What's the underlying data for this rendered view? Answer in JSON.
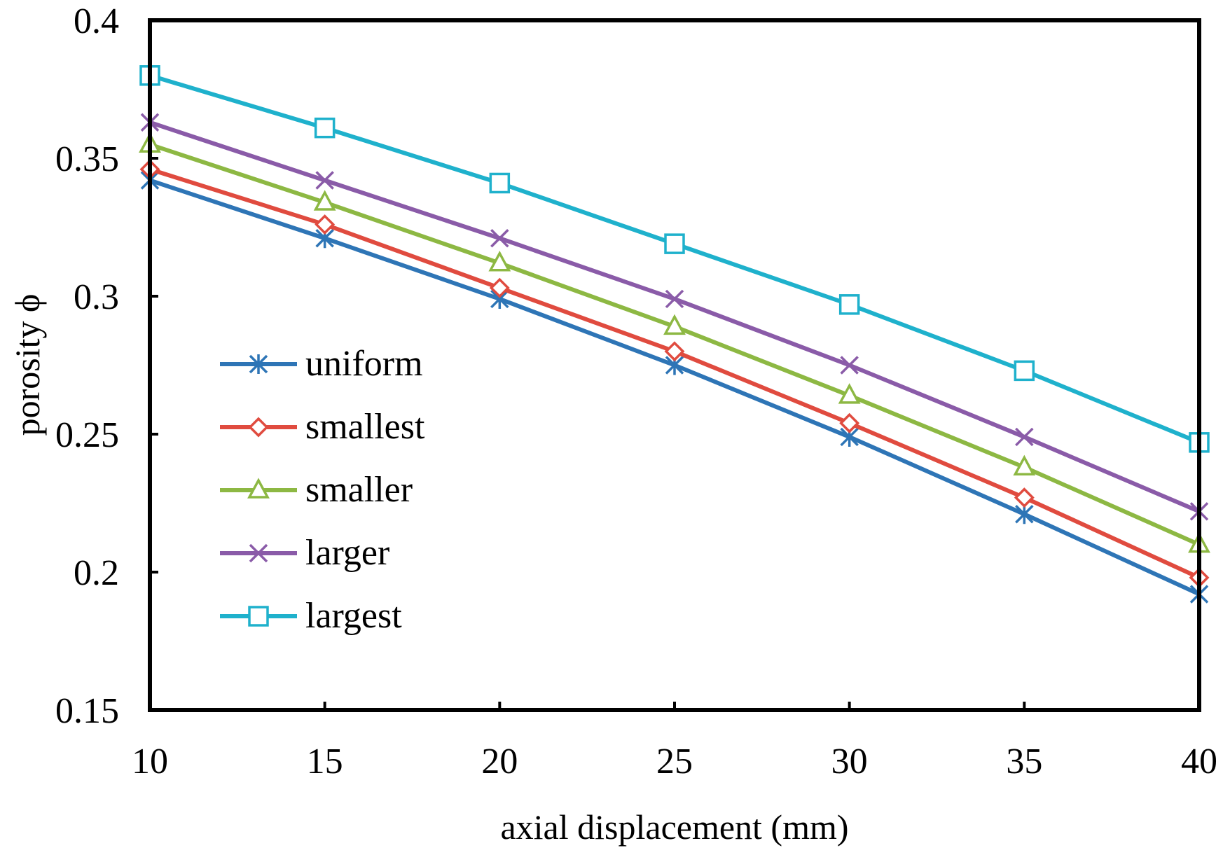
{
  "chart_data": {
    "type": "line",
    "title": "",
    "xlabel": "axial displacement (mm)",
    "ylabel": "porosity ϕ",
    "x": [
      10,
      15,
      20,
      25,
      30,
      35,
      40
    ],
    "xlim": [
      10,
      40
    ],
    "ylim": [
      0.15,
      0.4
    ],
    "xticks": [
      10,
      15,
      20,
      25,
      30,
      35,
      40
    ],
    "xtick_labels": [
      "10",
      "15",
      "20",
      "25",
      "30",
      "35",
      "40"
    ],
    "yticks": [
      0.15,
      0.2,
      0.25,
      0.3,
      0.35,
      0.4
    ],
    "ytick_labels": [
      "0.15",
      "0.2",
      "0.25",
      "0.3",
      "0.35",
      "0.4"
    ],
    "grid": false,
    "legend_position": "center-left",
    "series": [
      {
        "name": "uniform",
        "marker": "asterisk",
        "color": "#2E75B6",
        "values": [
          0.342,
          0.321,
          0.299,
          0.275,
          0.249,
          0.221,
          0.192
        ]
      },
      {
        "name": "smallest",
        "marker": "diamond",
        "color": "#E04B3F",
        "values": [
          0.346,
          0.326,
          0.303,
          0.28,
          0.254,
          0.227,
          0.198
        ]
      },
      {
        "name": "smaller",
        "marker": "triangle",
        "color": "#8DB843",
        "values": [
          0.355,
          0.334,
          0.312,
          0.289,
          0.264,
          0.238,
          0.21
        ]
      },
      {
        "name": "larger",
        "marker": "x",
        "color": "#8A5BA8",
        "values": [
          0.363,
          0.342,
          0.321,
          0.299,
          0.275,
          0.249,
          0.222
        ]
      },
      {
        "name": "largest",
        "marker": "square",
        "color": "#1FB1CC",
        "values": [
          0.38,
          0.361,
          0.341,
          0.319,
          0.297,
          0.273,
          0.247
        ]
      }
    ]
  }
}
